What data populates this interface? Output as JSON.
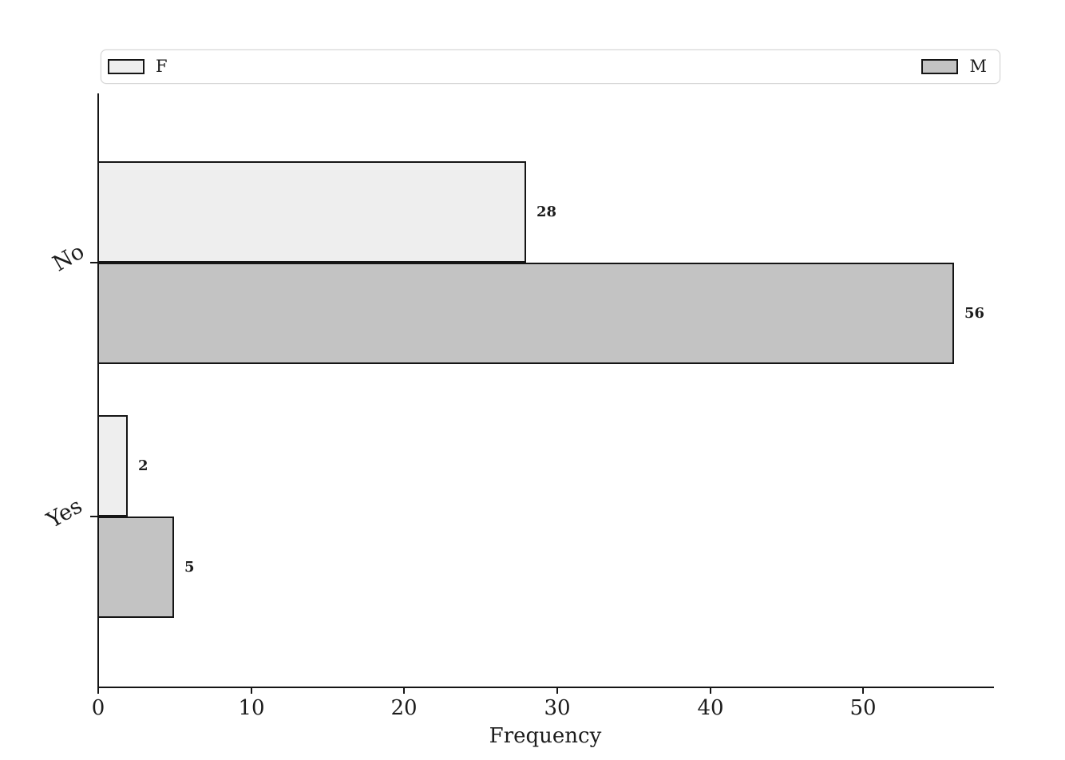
{
  "chart_data": {
    "type": "bar",
    "orientation": "horizontal",
    "categories": [
      "No",
      "Yes"
    ],
    "series": [
      {
        "name": "F",
        "values": [
          28,
          2
        ],
        "fill": "#eeeeee"
      },
      {
        "name": "M",
        "values": [
          56,
          5
        ],
        "fill": "#c3c3c3"
      }
    ],
    "bar_value_labels": [
      [
        "28",
        "2"
      ],
      [
        "56",
        "5"
      ]
    ],
    "xlabel": "Frequency",
    "x_tick_labels": [
      "0",
      "10",
      "20",
      "30",
      "40",
      "50"
    ],
    "x_tick_values": [
      0,
      10,
      20,
      30,
      40,
      50
    ],
    "xlim": [
      0,
      58.6
    ],
    "ytick_rotation_deg": 30,
    "grid": false,
    "legend": {
      "position": "top-expanded",
      "entries": [
        "F",
        "M"
      ],
      "border_color": "#d6d6d6"
    },
    "colors": {
      "bar_edge": "#151515",
      "axis": "#151515",
      "text": "#1c1c1c",
      "background": "#ffffff"
    }
  }
}
